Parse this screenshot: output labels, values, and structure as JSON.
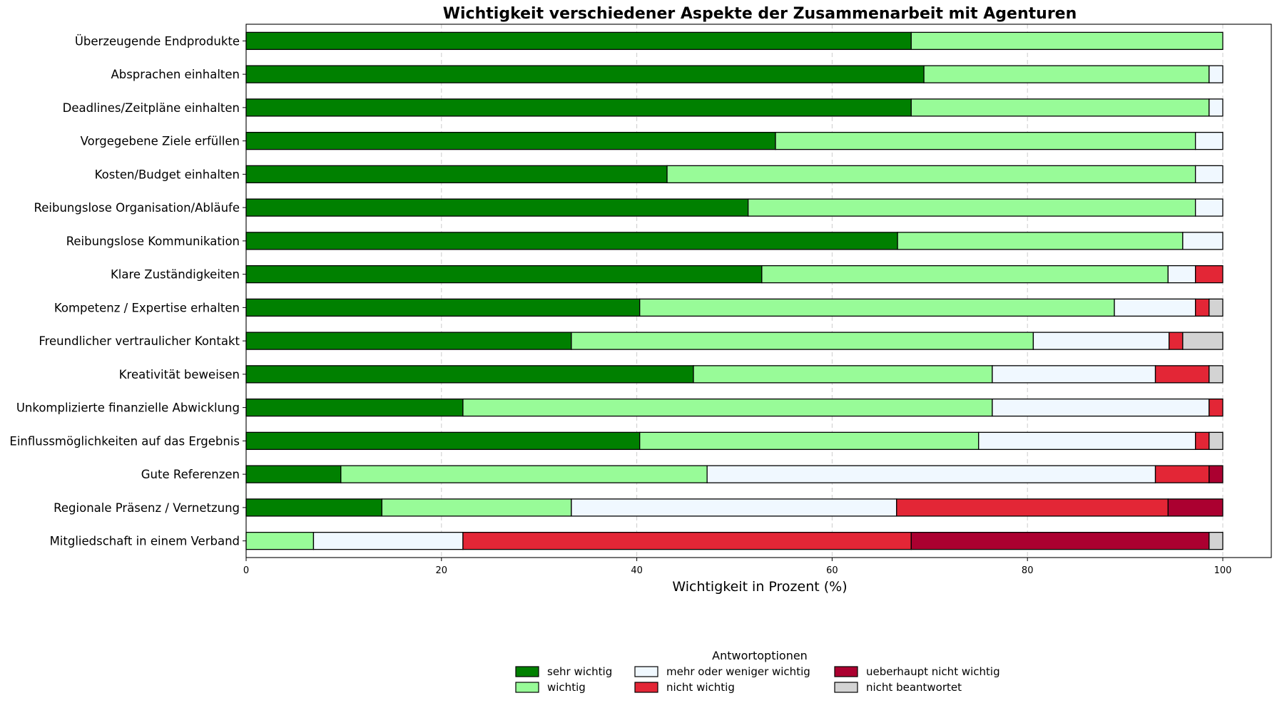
{
  "chart_data": {
    "type": "bar",
    "orientation": "horizontal",
    "stacked": true,
    "title": "Wichtigkeit verschiedener Aspekte der Zusammenarbeit mit Agenturen",
    "xlabel": "Wichtigkeit in Prozent (%)",
    "ylabel": "",
    "xlim": [
      0,
      100
    ],
    "xticks": [
      0,
      20,
      40,
      60,
      80,
      100
    ],
    "grid": "vertical dashed",
    "legend": {
      "title": "Antwortoptionen",
      "placement": "bottom-center"
    },
    "categories": [
      "Überzeugende Endprodukte",
      "Absprachen einhalten",
      "Deadlines/Zeitpläne einhalten",
      "Vorgegebene Ziele erfüllen",
      "Kosten/Budget einhalten",
      "Reibungslose Organisation/Abläufe",
      "Reibungslose Kommunikation",
      "Klare Zuständigkeiten",
      "Kompetenz / Expertise erhalten",
      "Freundlicher vertraulicher Kontakt",
      "Kreativität beweisen",
      "Unkomplizierte finanzielle Abwicklung",
      "Einflussmöglichkeiten auf das Ergebnis",
      "Gute Referenzen",
      "Regionale Präsenz / Vernetzung",
      "Mitgliedschaft in einem Verband"
    ],
    "series": [
      {
        "name": "sehr wichtig",
        "color": "#008000",
        "values": [
          68.1,
          69.4,
          68.1,
          54.2,
          43.1,
          51.4,
          66.7,
          52.8,
          40.3,
          33.3,
          45.8,
          22.2,
          40.3,
          9.7,
          13.9,
          0
        ]
      },
      {
        "name": "wichtig",
        "color": "#98fb98",
        "values": [
          31.9,
          29.2,
          30.5,
          43.0,
          54.1,
          45.8,
          29.2,
          41.6,
          48.6,
          47.3,
          30.6,
          54.2,
          34.7,
          37.5,
          19.4,
          6.9
        ]
      },
      {
        "name": "mehr oder weniger wichtig",
        "color": "#f0f8ff",
        "values": [
          0,
          1.4,
          1.4,
          2.8,
          2.8,
          2.8,
          4.1,
          2.8,
          8.3,
          13.9,
          16.7,
          22.2,
          22.2,
          45.9,
          33.3,
          15.3
        ]
      },
      {
        "name": "nicht wichtig",
        "color": "#e32636",
        "values": [
          0,
          0,
          0,
          0,
          0,
          0,
          0,
          2.8,
          1.4,
          1.4,
          5.5,
          1.4,
          1.4,
          5.5,
          27.8,
          45.9
        ]
      },
      {
        "name": "ueberhaupt nicht wichtig",
        "color": "#ab0030",
        "values": [
          0,
          0,
          0,
          0,
          0,
          0,
          0,
          0,
          0,
          0,
          0,
          0,
          0,
          1.4,
          5.6,
          30.5
        ]
      },
      {
        "name": "nicht beantwortet",
        "color": "#d3d3d3",
        "values": [
          0,
          0,
          0,
          0,
          0,
          0,
          0,
          0,
          1.4,
          4.1,
          1.4,
          0,
          1.4,
          0,
          0,
          1.4
        ]
      }
    ]
  }
}
